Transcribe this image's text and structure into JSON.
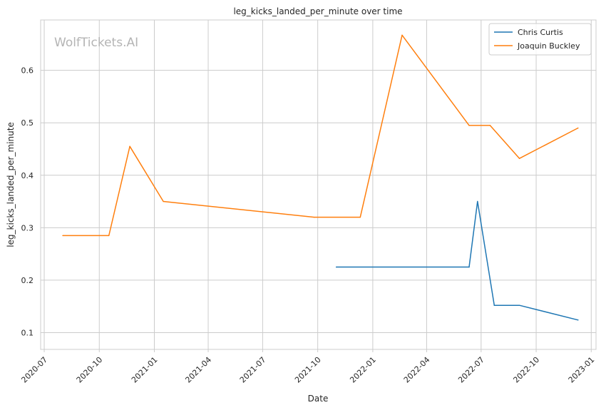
{
  "chart_data": {
    "type": "line",
    "title": "leg_kicks_landed_per_minute over time",
    "xlabel": "Date",
    "ylabel": "leg_kicks_landed_per_minute",
    "watermark": "WolfTickets.AI",
    "grid": true,
    "legend_position": "top-right",
    "xlim": [
      "2020-06-25",
      "2023-01-09"
    ],
    "ylim": [
      0.068,
      0.696
    ],
    "x_ticks": [
      "2020-07",
      "2020-10",
      "2021-01",
      "2021-04",
      "2021-07",
      "2021-10",
      "2022-01",
      "2022-04",
      "2022-07",
      "2022-10",
      "2023-01"
    ],
    "y_ticks": [
      0.1,
      0.2,
      0.3,
      0.4,
      0.5,
      0.6
    ],
    "series": [
      {
        "name": "Chris Curtis",
        "color": "#1f77b4",
        "points": [
          {
            "x": "2021-11-01",
            "y": 0.225
          },
          {
            "x": "2022-06-11",
            "y": 0.225
          },
          {
            "x": "2022-06-25",
            "y": 0.35
          },
          {
            "x": "2022-07-23",
            "y": 0.152
          },
          {
            "x": "2022-09-03",
            "y": 0.152
          },
          {
            "x": "2022-12-10",
            "y": 0.124
          }
        ]
      },
      {
        "name": "Joaquin Buckley",
        "color": "#ff7f0e",
        "points": [
          {
            "x": "2020-08-01",
            "y": 0.285
          },
          {
            "x": "2020-10-17",
            "y": 0.285
          },
          {
            "x": "2020-11-21",
            "y": 0.455
          },
          {
            "x": "2021-01-16",
            "y": 0.35
          },
          {
            "x": "2021-09-25",
            "y": 0.32
          },
          {
            "x": "2021-12-11",
            "y": 0.32
          },
          {
            "x": "2022-02-19",
            "y": 0.667
          },
          {
            "x": "2022-06-11",
            "y": 0.495
          },
          {
            "x": "2022-07-16",
            "y": 0.495
          },
          {
            "x": "2022-09-03",
            "y": 0.432
          },
          {
            "x": "2022-12-10",
            "y": 0.49
          }
        ]
      }
    ]
  }
}
